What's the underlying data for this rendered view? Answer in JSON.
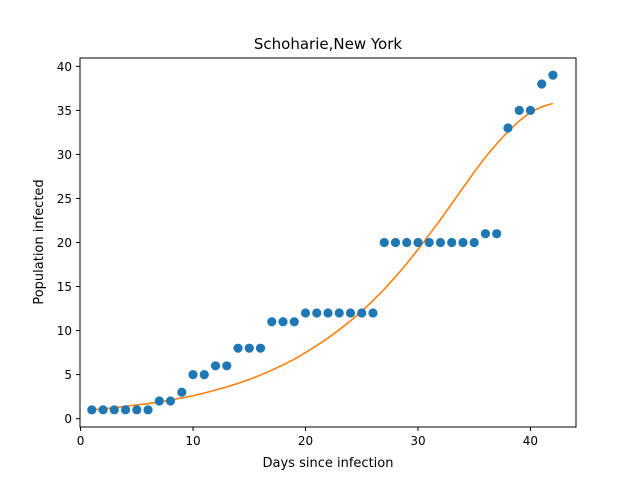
{
  "chart_data": {
    "type": "scatter",
    "title": "Schoharie,New York",
    "xlabel": "Days since infection",
    "ylabel": "Population infected",
    "xlim": [
      -0.05,
      44.05
    ],
    "ylim": [
      -0.95,
      40.95
    ],
    "xticks": [
      0,
      10,
      20,
      30,
      40
    ],
    "yticks": [
      0,
      5,
      10,
      15,
      20,
      25,
      30,
      35,
      40
    ],
    "grid": false,
    "series": [
      {
        "kind": "scatter",
        "color": "#1f77b4",
        "x": [
          1,
          2,
          3,
          4,
          5,
          6,
          7,
          8,
          9,
          10,
          11,
          12,
          13,
          14,
          15,
          16,
          17,
          18,
          19,
          20,
          21,
          22,
          23,
          24,
          25,
          26,
          27,
          28,
          29,
          30,
          31,
          32,
          33,
          34,
          35,
          36,
          37,
          38,
          39,
          40,
          41,
          42
        ],
        "y": [
          1,
          1,
          1,
          1,
          1,
          1,
          2,
          2,
          3,
          5,
          5,
          6,
          6,
          8,
          8,
          8,
          11,
          11,
          11,
          12,
          12,
          12,
          12,
          12,
          12,
          12,
          20,
          20,
          20,
          20,
          20,
          20,
          20,
          20,
          20,
          21,
          21,
          33,
          35,
          35,
          38,
          39
        ]
      },
      {
        "kind": "line",
        "color": "#ff7f0e",
        "x": [
          1,
          2,
          3,
          4,
          5,
          6,
          7,
          8,
          9,
          10,
          11,
          12,
          13,
          14,
          15,
          16,
          17,
          18,
          19,
          20,
          21,
          22,
          23,
          24,
          25,
          26,
          27,
          28,
          29,
          30,
          31,
          32,
          33,
          34,
          35,
          36,
          37,
          38,
          39,
          40,
          41,
          42
        ],
        "y": [
          1.0,
          1.1,
          1.25,
          1.4,
          1.55,
          1.7,
          1.9,
          2.1,
          2.35,
          2.6,
          2.9,
          3.25,
          3.6,
          4.0,
          4.45,
          4.95,
          5.5,
          6.1,
          6.75,
          7.5,
          8.3,
          9.15,
          10.1,
          11.1,
          12.2,
          13.4,
          14.7,
          16.1,
          17.6,
          19.2,
          20.9,
          22.6,
          24.4,
          26.2,
          28.0,
          29.7,
          31.2,
          32.6,
          33.8,
          34.8,
          35.4,
          35.8
        ]
      }
    ]
  }
}
